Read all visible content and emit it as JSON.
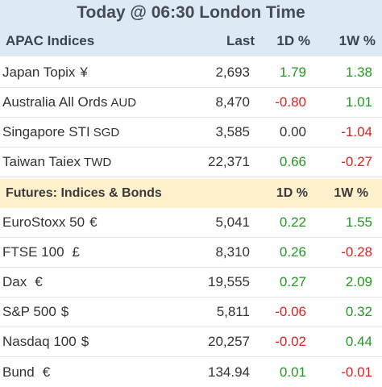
{
  "title": "Today @ 06:30 London Time",
  "colors": {
    "positive": "#229922",
    "negative": "#dd2222",
    "neutral": "#333333",
    "header_bg": "#dde9f5",
    "section_bg": "#fdf0cc"
  },
  "apac": {
    "header": {
      "name": "APAC Indices",
      "last": "Last",
      "d1": "1D %",
      "w1": "1W %"
    },
    "rows": [
      {
        "name": "Japan Topix",
        "cur": "¥",
        "last": "2,693",
        "d1": "1.79",
        "w1": "1.38",
        "d1_sign": "pos",
        "w1_sign": "pos"
      },
      {
        "name": "Australia All Ords",
        "cur": "AUD",
        "last": "8,470",
        "d1": "-0.80",
        "w1": "1.01",
        "d1_sign": "neg",
        "w1_sign": "pos"
      },
      {
        "name": "Singapore STI",
        "cur": "SGD",
        "last": "3,585",
        "d1": "0.00",
        "w1": "-1.04",
        "d1_sign": "zero",
        "w1_sign": "neg"
      },
      {
        "name": "Taiwan Taiex",
        "cur": "TWD",
        "last": "22,371",
        "d1": "0.66",
        "w1": "-0.27",
        "d1_sign": "pos",
        "w1_sign": "neg"
      }
    ]
  },
  "futures": {
    "header": {
      "name": "Futures: Indices & Bonds",
      "d1": "1D %",
      "w1": "1W %"
    },
    "rows": [
      {
        "name": "EuroStoxx 50",
        "cur": "€",
        "last": "5,041",
        "d1": "0.22",
        "w1": "1.55",
        "d1_sign": "pos",
        "w1_sign": "pos"
      },
      {
        "name": "FTSE 100",
        "cur": "£",
        "last": "8,310",
        "d1": "0.26",
        "w1": "-0.28",
        "d1_sign": "pos",
        "w1_sign": "neg"
      },
      {
        "name": "Dax",
        "cur": "€",
        "last": "19,555",
        "d1": "0.27",
        "w1": "2.09",
        "d1_sign": "pos",
        "w1_sign": "pos"
      },
      {
        "name": "S&P 500",
        "cur": "$",
        "last": "5,811",
        "d1": "-0.06",
        "w1": "0.32",
        "d1_sign": "neg",
        "w1_sign": "pos"
      },
      {
        "name": "Nasdaq 100",
        "cur": "$",
        "last": "20,257",
        "d1": "-0.02",
        "w1": "0.44",
        "d1_sign": "neg",
        "w1_sign": "pos"
      },
      {
        "name": "Bund",
        "cur": "€",
        "last": "134.94",
        "d1": "0.01",
        "w1": "-0.01",
        "d1_sign": "pos",
        "w1_sign": "neg"
      }
    ]
  }
}
